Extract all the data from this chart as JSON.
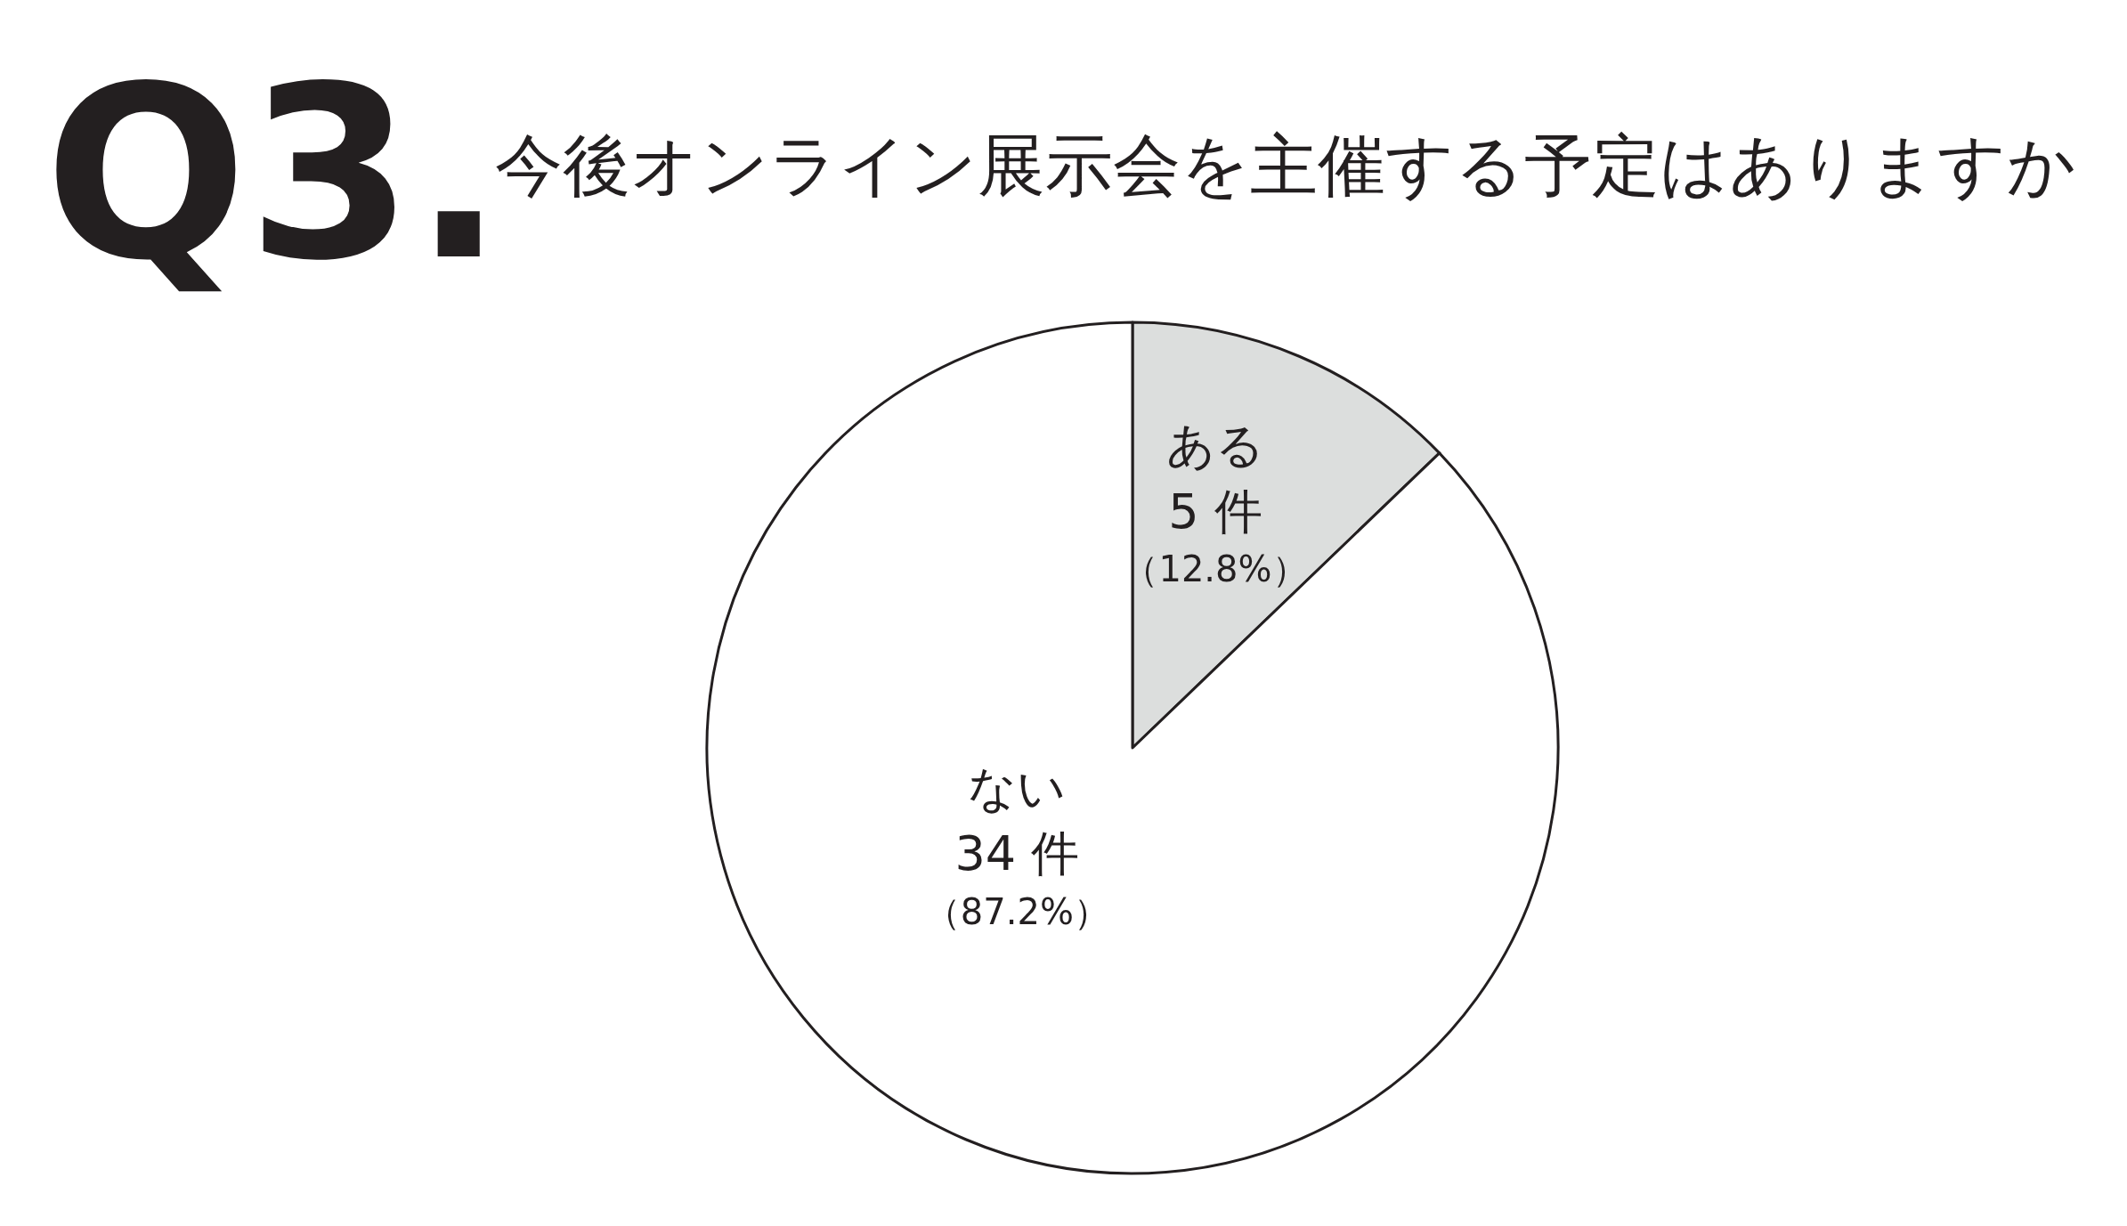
{
  "chart_data": {
    "type": "pie",
    "title": "Q3.",
    "subtitle": "今後オンライン展示会を主催する予定はありますか",
    "categories": [
      "ある",
      "ない"
    ],
    "values": [
      5,
      34
    ],
    "colors": [
      "#dcdedd",
      "#ffffff"
    ],
    "value_labels": [
      "5 件",
      "34 件"
    ],
    "annotations": [
      "（12.8%）",
      "（87.2%）"
    ]
  }
}
